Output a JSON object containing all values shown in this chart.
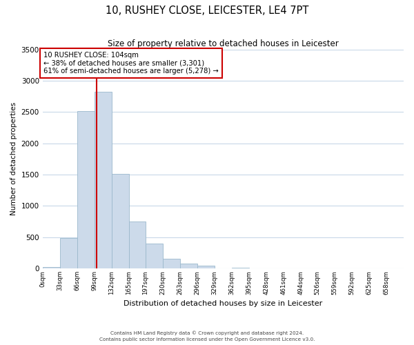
{
  "title": "10, RUSHEY CLOSE, LEICESTER, LE4 7PT",
  "subtitle": "Size of property relative to detached houses in Leicester",
  "xlabel": "Distribution of detached houses by size in Leicester",
  "ylabel": "Number of detached properties",
  "bar_color": "#ccdaea",
  "bar_edgecolor": "#9ab8cc",
  "bin_labels": [
    "0sqm",
    "33sqm",
    "66sqm",
    "99sqm",
    "132sqm",
    "165sqm",
    "197sqm",
    "230sqm",
    "263sqm",
    "296sqm",
    "329sqm",
    "362sqm",
    "395sqm",
    "428sqm",
    "461sqm",
    "494sqm",
    "526sqm",
    "559sqm",
    "592sqm",
    "625sqm",
    "658sqm"
  ],
  "bar_heights": [
    25,
    480,
    2510,
    2820,
    1510,
    750,
    400,
    155,
    80,
    45,
    5,
    10,
    0,
    0,
    0,
    0,
    0,
    0,
    0,
    0
  ],
  "ylim": [
    0,
    3500
  ],
  "yticks": [
    0,
    500,
    1000,
    1500,
    2000,
    2500,
    3000,
    3500
  ],
  "property_line_x": 104,
  "annotation_title": "10 RUSHEY CLOSE: 104sqm",
  "annotation_line1": "← 38% of detached houses are smaller (3,301)",
  "annotation_line2": "61% of semi-detached houses are larger (5,278) →",
  "box_color": "#cc0000",
  "vline_color": "#cc0000",
  "footnote1": "Contains HM Land Registry data © Crown copyright and database right 2024.",
  "footnote2": "Contains public sector information licensed under the Open Government Licence v3.0.",
  "bin_edges_sqm": [
    0,
    33,
    66,
    99,
    132,
    165,
    197,
    230,
    263,
    296,
    329,
    362,
    395,
    428,
    461,
    494,
    526,
    559,
    592,
    625,
    658
  ],
  "xmax": 691
}
